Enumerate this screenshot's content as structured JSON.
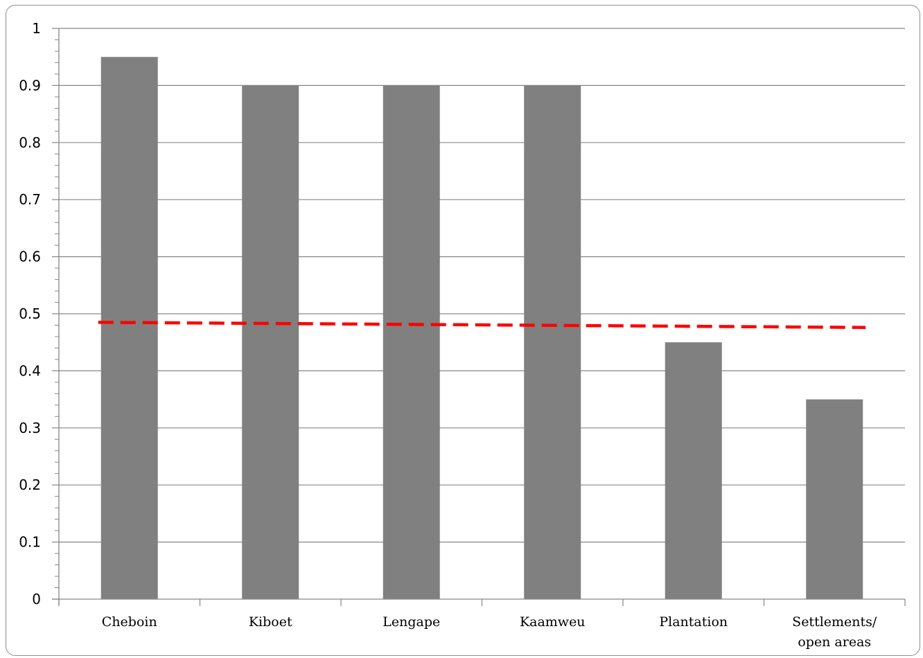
{
  "chart_data": {
    "type": "bar",
    "categories": [
      "Cheboin",
      "Kiboet",
      "Lengape",
      "Kaamweu",
      "Plantation",
      "Settlements/\nopen areas"
    ],
    "values": [
      0.95,
      0.9,
      0.9,
      0.9,
      0.45,
      0.35
    ],
    "ylim": [
      0,
      1
    ],
    "yticks": [
      0,
      0.1,
      0.2,
      0.3,
      0.4,
      0.5,
      0.6,
      0.7,
      0.8,
      0.9,
      1
    ],
    "ytick_labels": [
      "0",
      "0.1",
      "0.2",
      "0.3",
      "0.4",
      "0.5",
      "0.6",
      "0.7",
      "0.8",
      "0.9",
      "1"
    ],
    "y_minor_ticks_per_major": 5,
    "grid": true,
    "title": "",
    "xlabel": "",
    "ylabel": "",
    "reference_line": {
      "style": "dashed",
      "start_value": 0.485,
      "end_value": 0.476
    },
    "colors": {
      "bar": "#808080",
      "reference_line": "#ff0000",
      "grid": "#868686",
      "axis": "#868686"
    }
  }
}
